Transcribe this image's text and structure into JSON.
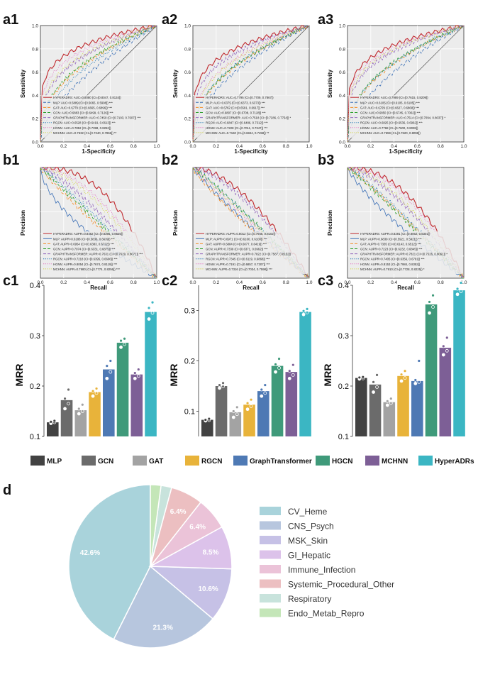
{
  "chart_data": [
    {
      "id": "a1",
      "type": "line",
      "panel_label": "a1",
      "xlabel": "1-Specificity",
      "ylabel": "Sensitivity",
      "xlim": [
        0,
        1
      ],
      "ylim": [
        0,
        1
      ],
      "tick_labels": [
        "0.0",
        "0.2",
        "0.4",
        "0.6",
        "0.8",
        "1.0"
      ],
      "series": [
        {
          "name": "HYPERADRS: AUC=0.8080 (CI=[0.8047, 0.8134])",
          "color": "#c0282d",
          "dash": "solid",
          "gamma": 0.19
        },
        {
          "name": "MLP: AUC=0.5889 (CI=[0.5665, 0.5998]) ***",
          "color": "#3b6fb6",
          "dash": "dash",
          "gamma": 0.6
        },
        {
          "name": "GAT: AUC=0.6779 (CI=[0.6665, 0.6896]) ***",
          "color": "#f28e2b",
          "dash": "dash",
          "gamma": 0.42
        },
        {
          "name": "GCN: AUC=0.6883 (CI=[0.6499, 0.7126]) ***",
          "color": "#2ca02c",
          "dash": "dash",
          "gamma": 0.4
        },
        {
          "name": "GRAPHTRANSFORMER: AUC=0.7450 (CI=[0.7193, 0.7607]) ***",
          "color": "#9467bd",
          "dash": "dash",
          "gamma": 0.31
        },
        {
          "name": "RGCN: AUC=0.6528 (CI=[0.6419, 0.6613]) ***",
          "color": "#1f77b4",
          "dash": "dot",
          "gamma": 0.48
        },
        {
          "name": "HGNN: AUC=0.7852 (CI=[0.7398, 0.8252])",
          "color": "#e377c2",
          "dash": "dot",
          "gamma": 0.24
        },
        {
          "name": "MCHNN: AUC=0.7532 (CI=[0.7240, 0.7866]) **",
          "color": "#d4d44a",
          "dash": "dot",
          "gamma": 0.29
        }
      ]
    },
    {
      "id": "a2",
      "type": "line",
      "panel_label": "a2",
      "xlabel": "1-Specificity",
      "ylabel": "Sensitivity",
      "xlim": [
        0,
        1
      ],
      "ylim": [
        0,
        1
      ],
      "tick_labels": [
        "0.0",
        "0.2",
        "0.4",
        "0.6",
        "0.8",
        "1.0"
      ],
      "series": [
        {
          "name": "HYPERADRS: AUC=0.7795 (CI=[0.7709, 0.7867])",
          "color": "#c0282d",
          "dash": "solid",
          "gamma": 0.22
        },
        {
          "name": "MLP: AUC=0.6375 (CI=[0.6373, 0.6373]) ***",
          "color": "#3b6fb6",
          "dash": "dash",
          "gamma": 0.5
        },
        {
          "name": "GAT: AUC=0.6762 (CI=[0.6591, 0.6917]) ***",
          "color": "#f28e2b",
          "dash": "dash",
          "gamma": 0.43
        },
        {
          "name": "GCN: AUC=0.6807 (CI=[0.6708, 0.7128]) ***",
          "color": "#2ca02c",
          "dash": "dash",
          "gamma": 0.42
        },
        {
          "name": "GRAPHTRANSFORMER: AUC=0.7518 (CI=[0.7286, 0.7754]) *",
          "color": "#9467bd",
          "dash": "dash",
          "gamma": 0.27
        },
        {
          "name": "RGCN: AUC=0.6847 (CI=[0.6486, 0.7312]) ***",
          "color": "#1f77b4",
          "dash": "dot",
          "gamma": 0.41
        },
        {
          "name": "HGNN: AUC=0.7228 (CI=[0.7011, 0.7347]) ***",
          "color": "#e377c2",
          "dash": "dot",
          "gamma": 0.34
        },
        {
          "name": "MCHNN: AUC=0.7160 (CI=[0.6844, 0.7458]) **",
          "color": "#d4d44a",
          "dash": "dot",
          "gamma": 0.35
        }
      ]
    },
    {
      "id": "a3",
      "type": "line",
      "panel_label": "a3",
      "xlabel": "1-Specificity",
      "ylabel": "Sensitivity",
      "xlim": [
        0,
        1
      ],
      "ylim": [
        0,
        1
      ],
      "tick_labels": [
        "0.0",
        "0.2",
        "0.4",
        "0.6",
        "0.8",
        "1.0"
      ],
      "series": [
        {
          "name": "HYPERADRS: AUC=0.7989 (CI=[0.7615, 0.8209])",
          "color": "#c0282d",
          "dash": "solid",
          "gamma": 0.2
        },
        {
          "name": "MLP: AUC=0.6105 (CI=[0.6105, 0.6105]) ***",
          "color": "#3b6fb6",
          "dash": "dash",
          "gamma": 0.55
        },
        {
          "name": "GAT: AUC=0.6729 (CI=[0.6627, 0.6868]) ***",
          "color": "#f28e2b",
          "dash": "dash",
          "gamma": 0.43
        },
        {
          "name": "GCN: AUC=0.6850 (CI=[0.6745, 0.7062]) ***",
          "color": "#2ca02c",
          "dash": "dash",
          "gamma": 0.41
        },
        {
          "name": "GRAPHTRANSFORMER: AUC=0.7514 (CI=[0.7094, 0.8037]) *",
          "color": "#9467bd",
          "dash": "dash",
          "gamma": 0.27
        },
        {
          "name": "RGCN: AUC=0.6825 (CI=[0.6536, 0.6962]) ***",
          "color": "#1f77b4",
          "dash": "dot",
          "gamma": 0.42
        },
        {
          "name": "HGNN: AUC=0.7768 (CI=[0.7600, 0.8038])",
          "color": "#e377c2",
          "dash": "dot",
          "gamma": 0.23
        },
        {
          "name": "MCHNN: AUC=0.7659 (CI=[0.7620, 0.8098])",
          "color": "#d4d44a",
          "dash": "dot",
          "gamma": 0.25
        }
      ]
    },
    {
      "id": "b1",
      "type": "line",
      "panel_label": "b1",
      "xlabel": "Recall",
      "ylabel": "Precision",
      "xlim": [
        0,
        1
      ],
      "ylim": [
        0.5,
        1.0
      ],
      "tick_labels": [
        "0.0",
        "0.2",
        "0.4",
        "0.6",
        "0.8",
        "1.0"
      ],
      "series": [
        {
          "name": "HYPERADRS: AUPR=0.8462 (CI=[0.8395, 0.8525])",
          "color": "#c0282d",
          "dash": "solid",
          "p": 2.4
        },
        {
          "name": "MLP: AUPR=0.6188 (CI=[0.5836, 0.6639]) ***",
          "color": "#3b6fb6",
          "dash": "solid",
          "p": 0.6
        },
        {
          "name": "GAT: AUPR=0.6954 (CI=[0.6383, 0.6722]) ***",
          "color": "#f28e2b",
          "dash": "dash",
          "p": 0.9
        },
        {
          "name": "GCN: AUPR=0.7074 (CI=[0.6331, 0.6875]) ***",
          "color": "#2ca02c",
          "dash": "dash",
          "p": 1.0
        },
        {
          "name": "GRAPHTRANSFORMER: AUPR=0.7631 (CI=[0.7629, 0.8071]) ***",
          "color": "#9467bd",
          "dash": "dash",
          "p": 1.3
        },
        {
          "name": "RGCN: AUPR=0.7218 (CI=[0.6395, 0.6606]) ***",
          "color": "#1f77b4",
          "dash": "dot",
          "p": 1.1
        },
        {
          "name": "HGNN: AUPR=0.8054 (CI=[0.7674, 0.8119]) ***",
          "color": "#e377c2",
          "dash": "dot",
          "p": 1.8
        },
        {
          "name": "MCHNN: AUPR=0.7980 (CI=[0.7774, 0.8256]) ***",
          "color": "#d4d44a",
          "dash": "dot",
          "p": 1.6
        }
      ]
    },
    {
      "id": "b2",
      "type": "line",
      "panel_label": "b2",
      "xlabel": "Recall",
      "ylabel": "Precision",
      "xlim": [
        0,
        1
      ],
      "ylim": [
        0.5,
        1.0
      ],
      "tick_labels": [
        "0.0",
        "0.2",
        "0.4",
        "0.6",
        "0.8",
        "1.0"
      ],
      "series": [
        {
          "name": "HYPERADRS: AUPR=0.8012 (CI=[0.7945, 0.8102])",
          "color": "#c0282d",
          "dash": "solid",
          "p": 1.7
        },
        {
          "name": "MLP: AUPR=0.6971 (CI=[0.6100, 0.6100]) ***",
          "color": "#3b6fb6",
          "dash": "solid",
          "p": 0.9
        },
        {
          "name": "GAT: AUPR=0.6884 (CI=[0.6077, 0.6419]) ***",
          "color": "#f28e2b",
          "dash": "dash",
          "p": 0.85
        },
        {
          "name": "GCN: AUPR=0.7339 (CI=[0.6371, 0.6962]) ***",
          "color": "#2ca02c",
          "dash": "dash",
          "p": 1.1
        },
        {
          "name": "GRAPHTRANSFORMER: AUPR=0.7822 (CI=[0.7587, 0.8152])",
          "color": "#9467bd",
          "dash": "dash",
          "p": 1.5
        },
        {
          "name": "RGCN: AUPR=0.7345 (CI=[0.6119, 0.6868]) ***",
          "color": "#1f77b4",
          "dash": "dot",
          "p": 1.1
        },
        {
          "name": "HGNN: AUPR=0.7191 (CI=[0.6857, 0.7307]) ***",
          "color": "#e377c2",
          "dash": "dot",
          "p": 1.0
        },
        {
          "name": "MCHNN: AUPR=0.7316 (CI=[0.7034, 0.7598]) ***",
          "color": "#d4d44a",
          "dash": "dot",
          "p": 1.05
        }
      ]
    },
    {
      "id": "b3",
      "type": "line",
      "panel_label": "b3",
      "xlabel": "Recall",
      "ylabel": "Precision",
      "xlim": [
        0,
        1
      ],
      "ylim": [
        0.5,
        1.0
      ],
      "tick_labels": [
        "0.0",
        "0.2",
        "0.4",
        "0.6",
        "0.8",
        "1.0"
      ],
      "series": [
        {
          "name": "HYPERADRS: AUPR=0.8291 (CI=[0.8062, 0.8301])",
          "color": "#c0282d",
          "dash": "solid",
          "p": 2.1
        },
        {
          "name": "MLP: AUPR=0.6839 (CI=[0.5921, 0.5921]) ***",
          "color": "#3b6fb6",
          "dash": "solid",
          "p": 0.8
        },
        {
          "name": "GAT: AUPR=0.7335 (CI=[0.6143, 0.6512]) ***",
          "color": "#f28e2b",
          "dash": "dash",
          "p": 1.1
        },
        {
          "name": "GCN: AUPR=0.7223 (CI=[0.6232, 0.6845]) ***",
          "color": "#2ca02c",
          "dash": "dash",
          "p": 1.05
        },
        {
          "name": "GRAPHTRANSFORMER: AUPR=0.7821 (CI=[0.7526, 0.8061]) *",
          "color": "#9467bd",
          "dash": "dash",
          "p": 1.5
        },
        {
          "name": "RGCN: AUPR=0.7405 (CI=[0.6356, 0.6791]) ***",
          "color": "#1f77b4",
          "dash": "dot",
          "p": 1.15
        },
        {
          "name": "HGNN: AUPR=0.8153 (CI=[0.7984, 0.8352])",
          "color": "#e377c2",
          "dash": "dot",
          "p": 1.9
        },
        {
          "name": "MCHNN: AUPR=0.7910 (CI=[0.7728, 0.8225]) *",
          "color": "#d4d44a",
          "dash": "dot",
          "p": 1.6
        }
      ]
    },
    {
      "id": "c1",
      "type": "bar",
      "panel_label": "c1",
      "ylabel": "MRR",
      "ylim": [
        0.1,
        0.4
      ],
      "yticks": [
        0.1,
        0.2,
        0.3,
        0.4
      ],
      "ytick_labels": [
        "0.1",
        "0.2",
        "0.3",
        "0.4"
      ],
      "categories": [
        "MLP",
        "GCN",
        "GAT",
        "RGCN",
        "GraphTransformer",
        "HGCN",
        "MCHNN",
        "HyperADRs"
      ],
      "values": [
        0.128,
        0.172,
        0.152,
        0.188,
        0.233,
        0.286,
        0.223,
        0.347
      ],
      "points": [
        [
          0.126,
          0.128,
          0.129,
          0.131
        ],
        [
          0.155,
          0.165,
          0.175,
          0.193
        ],
        [
          0.145,
          0.15,
          0.155,
          0.163
        ],
        [
          0.18,
          0.186,
          0.19,
          0.195
        ],
        [
          0.215,
          0.228,
          0.24,
          0.25
        ],
        [
          0.277,
          0.283,
          0.29,
          0.294
        ],
        [
          0.215,
          0.22,
          0.226,
          0.233
        ],
        [
          0.333,
          0.345,
          0.355,
          0.366
        ]
      ]
    },
    {
      "id": "c2",
      "type": "bar",
      "panel_label": "c2",
      "ylabel": "MRR",
      "ylim": [
        0.05,
        0.35
      ],
      "yticks": [
        0.1,
        0.2,
        0.3
      ],
      "ytick_labels": [
        "0.1",
        "0.2",
        "0.3"
      ],
      "categories": [
        "MLP",
        "GCN",
        "GAT",
        "RGCN",
        "GraphTransformer",
        "HGCN",
        "MCHNN",
        "HyperADRs"
      ],
      "values": [
        0.083,
        0.15,
        0.098,
        0.113,
        0.14,
        0.19,
        0.178,
        0.297
      ],
      "points": [
        [
          0.081,
          0.082,
          0.083,
          0.085
        ],
        [
          0.146,
          0.149,
          0.152,
          0.156
        ],
        [
          0.088,
          0.094,
          0.1,
          0.108
        ],
        [
          0.104,
          0.11,
          0.116,
          0.123
        ],
        [
          0.13,
          0.136,
          0.143,
          0.152
        ],
        [
          0.178,
          0.186,
          0.193,
          0.204
        ],
        [
          0.165,
          0.172,
          0.18,
          0.192
        ],
        [
          0.292,
          0.296,
          0.299,
          0.303
        ]
      ]
    },
    {
      "id": "c3",
      "type": "bar",
      "panel_label": "c3",
      "ylabel": "MRR",
      "ylim": [
        0.1,
        0.4
      ],
      "yticks": [
        0.1,
        0.2,
        0.3,
        0.4
      ],
      "ytick_labels": [
        "0.1",
        "0.2",
        "0.3",
        "0.4"
      ],
      "categories": [
        "MLP",
        "GCN",
        "GAT",
        "RGCN",
        "GraphTransformer",
        "HGCN",
        "MCHNN",
        "HyperADRs"
      ],
      "values": [
        0.216,
        0.203,
        0.168,
        0.22,
        0.21,
        0.362,
        0.276,
        0.39
      ],
      "points": [
        [
          0.214,
          0.215,
          0.217,
          0.218
        ],
        [
          0.188,
          0.198,
          0.208,
          0.222
        ],
        [
          0.162,
          0.166,
          0.17,
          0.175
        ],
        [
          0.21,
          0.216,
          0.223,
          0.23
        ],
        [
          0.205,
          0.208,
          0.212,
          0.25
        ],
        [
          0.345,
          0.357,
          0.367,
          0.38
        ],
        [
          0.262,
          0.27,
          0.279,
          0.296
        ],
        [
          0.382,
          0.388,
          0.393,
          0.405
        ]
      ]
    },
    {
      "id": "d",
      "type": "pie",
      "panel_label": "d",
      "categories": [
        "CV_Heme",
        "CNS_Psych",
        "MSK_Skin",
        "GI_Hepatic",
        "Immune_Infection",
        "Systemic_Procedural_Other",
        "Respiratory",
        "Endo_Metab_Repro"
      ],
      "values": [
        42.6,
        21.3,
        10.6,
        8.5,
        6.4,
        6.4,
        2.1,
        2.1
      ],
      "slice_labels": [
        "42.6%",
        "21.3%",
        "10.6%",
        "8.5%",
        "6.4%",
        "6.4%",
        "",
        ""
      ],
      "colors": [
        "#a9d3db",
        "#b7c6de",
        "#c6c1e6",
        "#dcc2ea",
        "#ebc3d8",
        "#ecbfc1",
        "#c8e3dc",
        "#c4e6b8"
      ]
    }
  ],
  "bar_legend": {
    "labels": [
      "MLP",
      "GCN",
      "GAT",
      "RGCN",
      "GraphTransformer",
      "HGCN",
      "MCHNN",
      "HyperADRs"
    ],
    "colors": [
      "#424242",
      "#6b6b6b",
      "#a3a3a3",
      "#e8b33a",
      "#4e79b4",
      "#3f9a7a",
      "#7d5f96",
      "#3bb6c3"
    ]
  },
  "pie_legend": {
    "labels": [
      "CV_Heme",
      "CNS_Psych",
      "MSK_Skin",
      "GI_Hepatic",
      "Immune_Infection",
      "Systemic_Procedural_Other",
      "Respiratory",
      "Endo_Metab_Repro"
    ],
    "colors": [
      "#a9d3db",
      "#b7c6de",
      "#c6c1e6",
      "#dcc2ea",
      "#ebc3d8",
      "#ecbfc1",
      "#c8e3dc",
      "#c4e6b8"
    ]
  }
}
